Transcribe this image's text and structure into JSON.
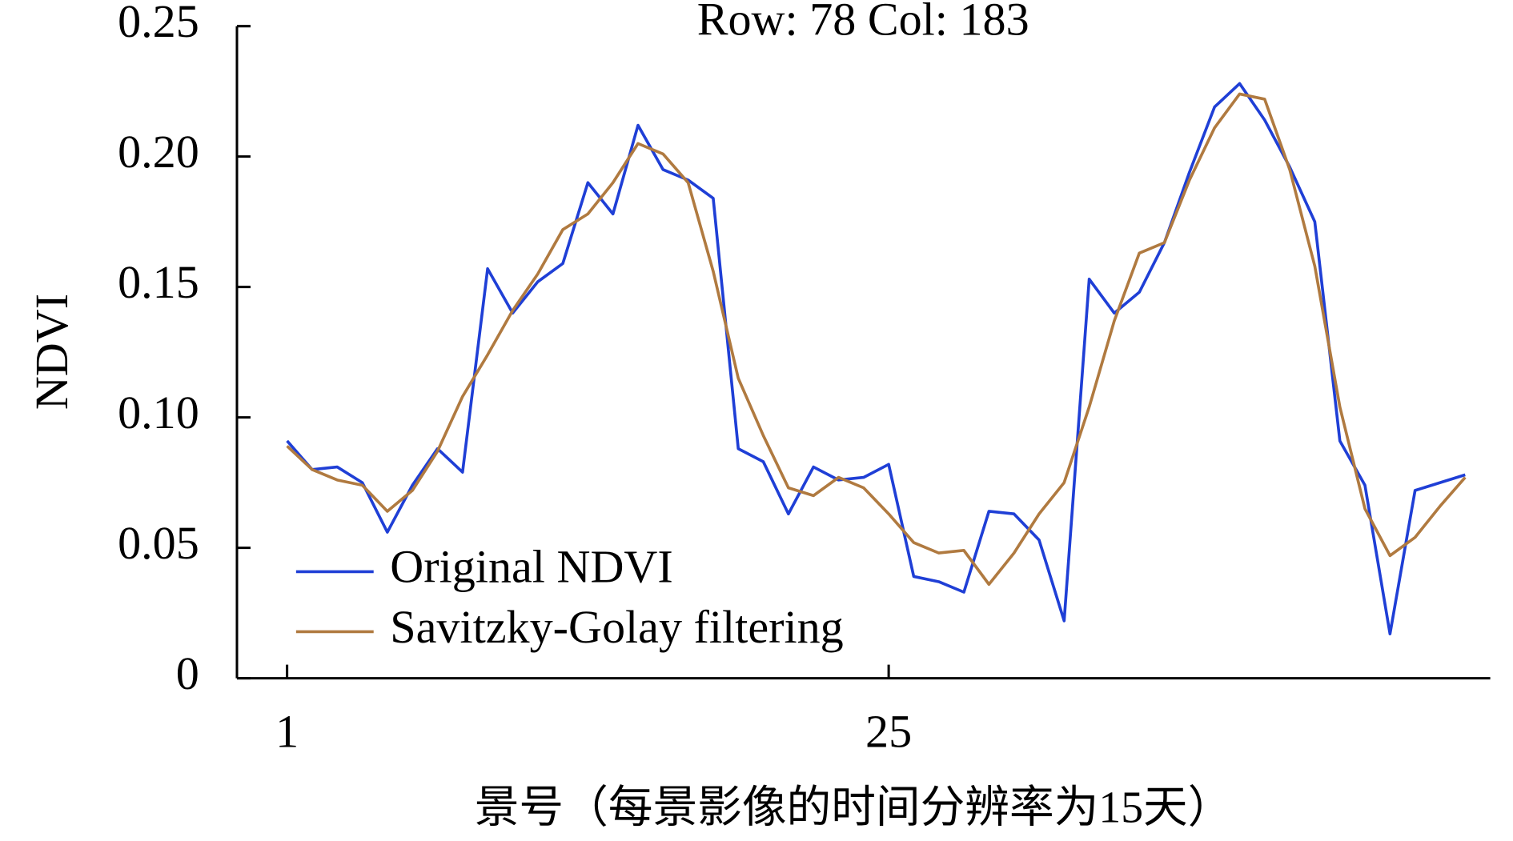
{
  "chart_data": {
    "type": "line",
    "title": "Row: 78 Col: 183",
    "y_label": "NDVI",
    "x_label": "景号（每景影像的时间分辨率为15天）",
    "x": [
      1,
      2,
      3,
      4,
      5,
      6,
      7,
      8,
      9,
      10,
      11,
      12,
      13,
      14,
      15,
      16,
      17,
      18,
      19,
      20,
      21,
      22,
      23,
      24,
      25,
      26,
      27,
      28,
      29,
      30,
      31,
      32,
      33,
      34,
      35,
      36,
      37,
      38,
      39,
      40,
      41,
      42,
      43,
      44,
      45,
      46,
      47,
      48
    ],
    "xlim": [
      -1,
      49
    ],
    "xticks": [
      1,
      25
    ],
    "ylim": [
      0,
      0.25
    ],
    "yticks": [
      0,
      0.05,
      {
        "value": 0.1,
        "label": "0.10"
      },
      0.15,
      {
        "value": 0.2,
        "label": "0.20"
      },
      0.25
    ],
    "legend": "lower left",
    "series": [
      {
        "name": "Original NDVI",
        "color": "#1f3fd6",
        "values": [
          0.091,
          0.08,
          0.081,
          0.075,
          0.056,
          0.074,
          0.088,
          0.079,
          0.157,
          0.14,
          0.152,
          0.159,
          0.19,
          0.178,
          0.212,
          0.195,
          0.191,
          0.184,
          0.088,
          0.083,
          0.063,
          0.081,
          0.076,
          0.077,
          0.082,
          0.039,
          0.037,
          0.033,
          0.064,
          0.063,
          0.053,
          0.022,
          0.153,
          0.14,
          0.148,
          0.167,
          0.194,
          0.219,
          0.228,
          0.214,
          0.196,
          0.175,
          0.091,
          0.074,
          0.017,
          0.072,
          0.075,
          0.078
        ]
      },
      {
        "name": "Savitzky-Golay filtering",
        "color": "#b07a40",
        "values": [
          0.089,
          0.08,
          0.076,
          0.074,
          0.064,
          0.072,
          0.087,
          0.108,
          0.124,
          0.141,
          0.155,
          0.172,
          0.178,
          0.19,
          0.205,
          0.201,
          0.19,
          0.156,
          0.115,
          0.093,
          0.073,
          0.07,
          0.077,
          0.073,
          0.063,
          0.052,
          0.048,
          0.049,
          0.036,
          0.048,
          0.063,
          0.075,
          0.104,
          0.137,
          0.163,
          0.167,
          0.191,
          0.211,
          0.224,
          0.222,
          0.195,
          0.158,
          0.104,
          0.065,
          0.047,
          0.054,
          0.066,
          0.077
        ]
      }
    ]
  }
}
